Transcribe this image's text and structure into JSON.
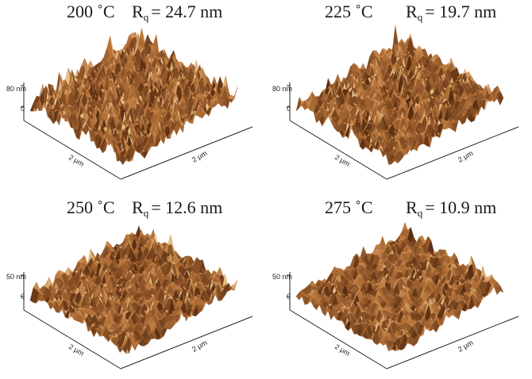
{
  "panels": [
    {
      "temperature": "200 ˚C",
      "rq_symbol": "R",
      "rq_sub": "q",
      "rq_value": "= 24.7 nm",
      "z_label": "80 nm",
      "zero_label": "0",
      "x_label": "2 μm",
      "y_label": "2 μm"
    },
    {
      "temperature": "225 ˚C",
      "rq_symbol": "R",
      "rq_sub": "q",
      "rq_value": "= 19.7 nm",
      "z_label": "80 nm",
      "zero_label": "0",
      "x_label": "2 μm",
      "y_label": "2 μm"
    },
    {
      "temperature": "250 ˚C",
      "rq_symbol": "R",
      "rq_sub": "q",
      "rq_value": "= 12.6 nm",
      "z_label": "50 nm",
      "zero_label": "0",
      "x_label": "2 μm",
      "y_label": "2 μm"
    },
    {
      "temperature": "275 ˚C",
      "rq_symbol": "R",
      "rq_sub": "q",
      "rq_value": "= 10.9 nm",
      "z_label": "50 nm",
      "zero_label": "0",
      "x_label": "2 μm",
      "y_label": "2 μm"
    }
  ],
  "colors": {
    "surface_light": "#e8c08a",
    "surface_mid": "#b8743a",
    "surface_dark": "#5a2e12",
    "axis": "#222222"
  }
}
